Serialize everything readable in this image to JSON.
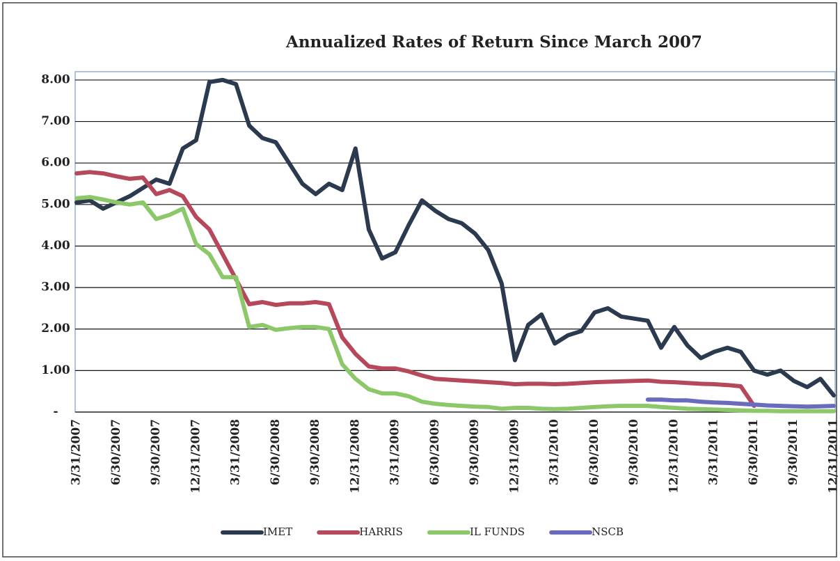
{
  "chart_data": {
    "type": "line",
    "title": "Annualized Rates of Return Since March 2007",
    "categories": [
      "3/31/2007",
      null,
      null,
      "6/30/2007",
      null,
      null,
      "9/30/2007",
      null,
      null,
      "12/31/2007",
      null,
      null,
      "3/31/2008",
      null,
      null,
      "6/30/2008",
      null,
      null,
      "9/30/2008",
      null,
      null,
      "12/31/2008",
      null,
      null,
      "3/31/2009",
      null,
      null,
      "6/30/2009",
      null,
      null,
      "9/30/2009",
      null,
      null,
      "12/31/2009",
      null,
      null,
      "3/31/2010",
      null,
      null,
      "6/30/2010",
      null,
      null,
      "9/30/2010",
      null,
      null,
      "12/31/2010",
      null,
      null,
      "3/31/2011",
      null,
      null,
      "6/30/2011",
      null,
      null,
      "9/30/2011",
      null,
      null,
      "12/31/2011"
    ],
    "series": [
      {
        "name": "IMET",
        "color": "#2b3a4f",
        "values": [
          5.05,
          5.1,
          4.9,
          5.05,
          5.2,
          5.4,
          5.6,
          5.5,
          6.35,
          6.55,
          7.95,
          8.0,
          7.9,
          6.9,
          6.6,
          6.5,
          6.0,
          5.5,
          5.25,
          5.5,
          5.35,
          6.35,
          4.4,
          3.7,
          3.85,
          4.5,
          5.1,
          4.85,
          4.65,
          4.55,
          4.3,
          3.9,
          3.1,
          1.25,
          2.1,
          2.35,
          1.65,
          1.85,
          1.95,
          2.4,
          2.5,
          2.3,
          2.25,
          2.2,
          1.55,
          2.05,
          1.6,
          1.3,
          1.45,
          1.55,
          1.45,
          1.0,
          0.9,
          1.0,
          0.75,
          0.6,
          0.8,
          0.4
        ]
      },
      {
        "name": "HARRIS",
        "color": "#b5495b",
        "values": [
          5.75,
          5.78,
          5.75,
          5.68,
          5.62,
          5.65,
          5.25,
          5.35,
          5.2,
          4.7,
          4.4,
          3.8,
          3.2,
          2.6,
          2.65,
          2.58,
          2.62,
          2.62,
          2.65,
          2.6,
          1.8,
          1.4,
          1.1,
          1.05,
          1.05,
          0.98,
          0.88,
          0.8,
          0.78,
          0.76,
          0.74,
          0.72,
          0.7,
          0.67,
          0.68,
          0.68,
          0.67,
          0.68,
          0.7,
          0.72,
          0.73,
          0.74,
          0.75,
          0.76,
          0.73,
          0.72,
          0.7,
          0.68,
          0.67,
          0.65,
          0.62,
          0.15,
          null,
          null,
          null,
          null,
          null,
          null
        ]
      },
      {
        "name": "IL FUNDS",
        "color": "#8cc86a",
        "values": [
          5.15,
          5.18,
          5.12,
          5.05,
          5.0,
          5.05,
          4.65,
          4.75,
          4.9,
          4.05,
          3.8,
          3.25,
          3.25,
          2.05,
          2.1,
          1.98,
          2.02,
          2.05,
          2.05,
          2.0,
          1.15,
          0.8,
          0.55,
          0.45,
          0.45,
          0.38,
          0.25,
          0.2,
          0.17,
          0.15,
          0.13,
          0.12,
          0.08,
          0.1,
          0.1,
          0.08,
          0.07,
          0.08,
          0.1,
          0.12,
          0.14,
          0.15,
          0.15,
          0.15,
          0.12,
          0.1,
          0.08,
          0.07,
          0.06,
          0.05,
          0.04,
          0.03,
          0.03,
          0.02,
          0.02,
          0.02,
          0.02,
          0.02
        ]
      },
      {
        "name": "NSCB",
        "color": "#6a6abf",
        "values": [
          null,
          null,
          null,
          null,
          null,
          null,
          null,
          null,
          null,
          null,
          null,
          null,
          null,
          null,
          null,
          null,
          null,
          null,
          null,
          null,
          null,
          null,
          null,
          null,
          null,
          null,
          null,
          null,
          null,
          null,
          null,
          null,
          null,
          null,
          null,
          null,
          null,
          null,
          null,
          null,
          null,
          null,
          null,
          0.3,
          0.3,
          0.28,
          0.28,
          0.25,
          0.23,
          0.22,
          0.2,
          0.18,
          0.16,
          0.15,
          0.14,
          0.13,
          0.14,
          0.15
        ]
      }
    ],
    "ylim": [
      0,
      8.2
    ],
    "yticks": [
      {
        "value": 0,
        "label": "-"
      },
      {
        "value": 1,
        "label": "1.00"
      },
      {
        "value": 2,
        "label": "2.00"
      },
      {
        "value": 3,
        "label": "3.00"
      },
      {
        "value": 4,
        "label": "4.00"
      },
      {
        "value": 5,
        "label": "5.00"
      },
      {
        "value": 6,
        "label": "6.00"
      },
      {
        "value": 7,
        "label": "7.00"
      },
      {
        "value": 8,
        "label": "8.00"
      }
    ],
    "grid": true,
    "legend": "bottom"
  }
}
